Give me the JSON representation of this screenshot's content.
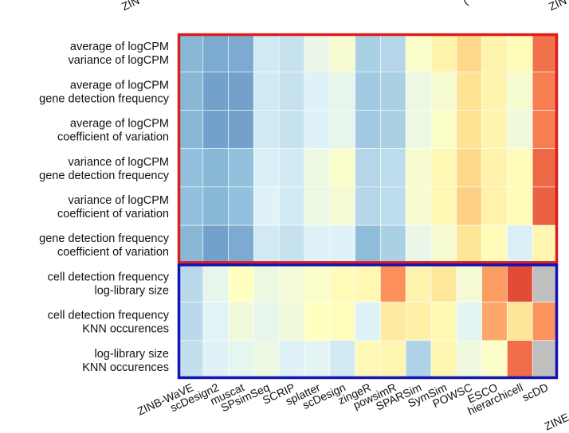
{
  "chart_data": {
    "type": "heatmap",
    "title": "",
    "rows": [
      [
        "average of logCPM",
        "variance of logCPM"
      ],
      [
        "average of logCPM",
        "gene detection frequency"
      ],
      [
        "average of logCPM",
        "coefficient of variation"
      ],
      [
        "variance of logCPM",
        "gene detection frequency"
      ],
      [
        "variance of logCPM",
        "coefficient of variation"
      ],
      [
        "gene detection frequency",
        "coefficient of variation"
      ],
      [
        "cell detection frequency",
        "log-library size"
      ],
      [
        "cell detection frequency",
        "KNN occurences"
      ],
      [
        "log-library size",
        "KNN occurences"
      ]
    ],
    "columns": [
      "ZINB-WaVE",
      "scDesign2",
      "muscat",
      "SPsimSeq",
      "SCRIP",
      "splatter",
      "scDesign",
      "zingeR",
      "powsimR",
      "SPARSim",
      "SymSim",
      "POWSC",
      "ESCO",
      "hierarchicell",
      "scDD"
    ],
    "group_outline_colors": [
      "#d81e1e",
      "#1414b4"
    ],
    "group_row_spans": [
      [
        0,
        5
      ],
      [
        6,
        8
      ]
    ],
    "color_scale": {
      "min": 0,
      "max": 1,
      "stops": [
        "#4575b4",
        "#91bfdb",
        "#e0f3f8",
        "#ffffbf",
        "#fee090",
        "#fc8d59",
        "#d73027"
      ],
      "missing": "#bfbfbf"
    },
    "values": [
      [
        0.15,
        0.12,
        0.12,
        0.3,
        0.28,
        0.38,
        0.45,
        0.22,
        0.24,
        0.47,
        0.57,
        0.68,
        0.56,
        0.52,
        0.88
      ],
      [
        0.15,
        0.1,
        0.1,
        0.3,
        0.28,
        0.33,
        0.37,
        0.2,
        0.22,
        0.4,
        0.45,
        0.65,
        0.56,
        0.45,
        0.86
      ],
      [
        0.15,
        0.1,
        0.1,
        0.3,
        0.28,
        0.33,
        0.37,
        0.2,
        0.22,
        0.4,
        0.48,
        0.65,
        0.56,
        0.42,
        0.86
      ],
      [
        0.17,
        0.15,
        0.17,
        0.32,
        0.3,
        0.4,
        0.47,
        0.24,
        0.26,
        0.45,
        0.54,
        0.68,
        0.57,
        0.52,
        0.9
      ],
      [
        0.17,
        0.15,
        0.17,
        0.33,
        0.3,
        0.4,
        0.44,
        0.24,
        0.26,
        0.45,
        0.54,
        0.7,
        0.57,
        0.52,
        0.91
      ],
      [
        0.15,
        0.1,
        0.12,
        0.3,
        0.28,
        0.33,
        0.33,
        0.16,
        0.22,
        0.38,
        0.45,
        0.64,
        0.52,
        0.32,
        0.55
      ],
      [
        0.25,
        0.37,
        0.5,
        0.4,
        0.43,
        0.47,
        0.52,
        0.54,
        0.83,
        0.56,
        0.63,
        0.44,
        0.8,
        0.95,
        null
      ],
      [
        0.25,
        0.34,
        0.42,
        0.37,
        0.42,
        0.5,
        0.51,
        0.33,
        0.61,
        0.58,
        0.54,
        0.35,
        0.78,
        0.64,
        0.82
      ],
      [
        0.27,
        0.33,
        0.36,
        0.4,
        0.33,
        0.35,
        0.3,
        0.53,
        0.55,
        0.23,
        0.55,
        0.41,
        0.48,
        0.89,
        null
      ]
    ],
    "edge_labels": {
      "top_left": "ZIN",
      "top_right_partial": "(",
      "top_right": "ZIN",
      "bottom_right": "ZINE"
    }
  }
}
